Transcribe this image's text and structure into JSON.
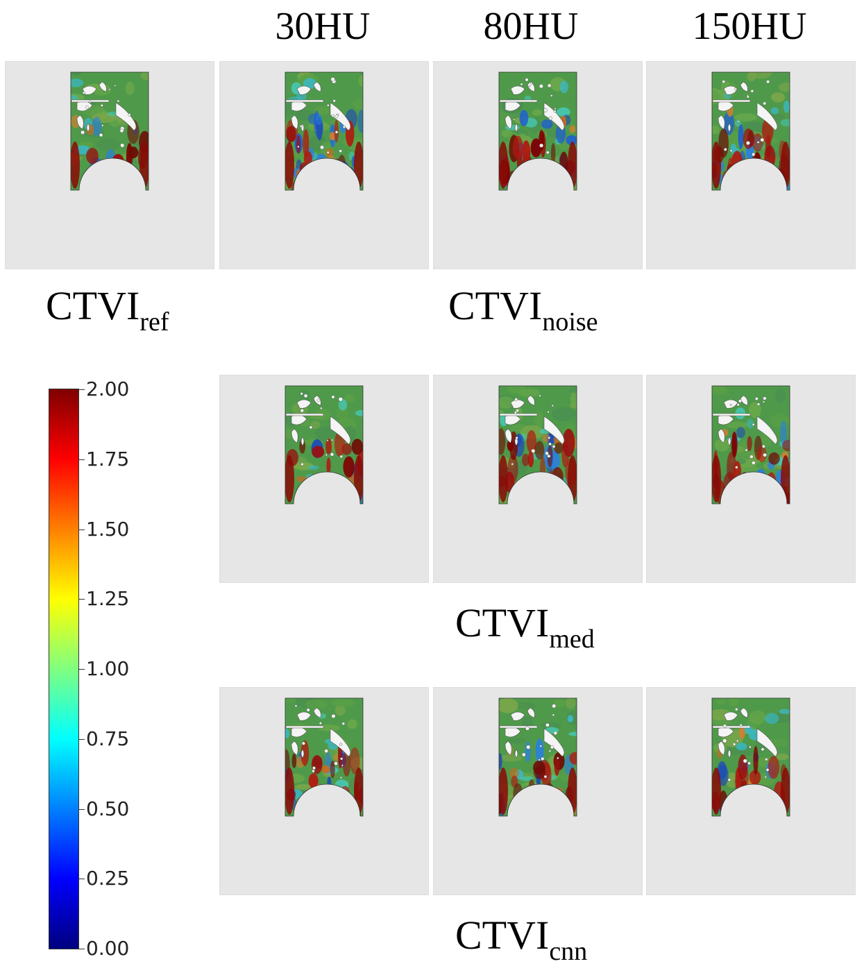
{
  "column_headers": [
    "30HU",
    "80HU",
    "150HU"
  ],
  "row_labels": {
    "ref": {
      "main": "CTVI",
      "sub": "ref"
    },
    "noise": {
      "main": "CTVI",
      "sub": "noise"
    },
    "med": {
      "main": "CTVI",
      "sub": "med"
    },
    "cnn": {
      "main": "CTVI",
      "sub": "cnn"
    }
  },
  "colorbar": {
    "min": 0.0,
    "max": 2.0,
    "ticks": [
      "2.00",
      "1.75",
      "1.50",
      "1.25",
      "1.00",
      "0.75",
      "0.50",
      "0.25",
      "0.00"
    ],
    "colormap": "jet"
  },
  "colors": {
    "panel_background": "#e6e6e6",
    "tissue_base": "#4f9a4a",
    "high_value": "#7f0000",
    "low_value": "#1f5fd0",
    "cavity": "#ececec"
  }
}
